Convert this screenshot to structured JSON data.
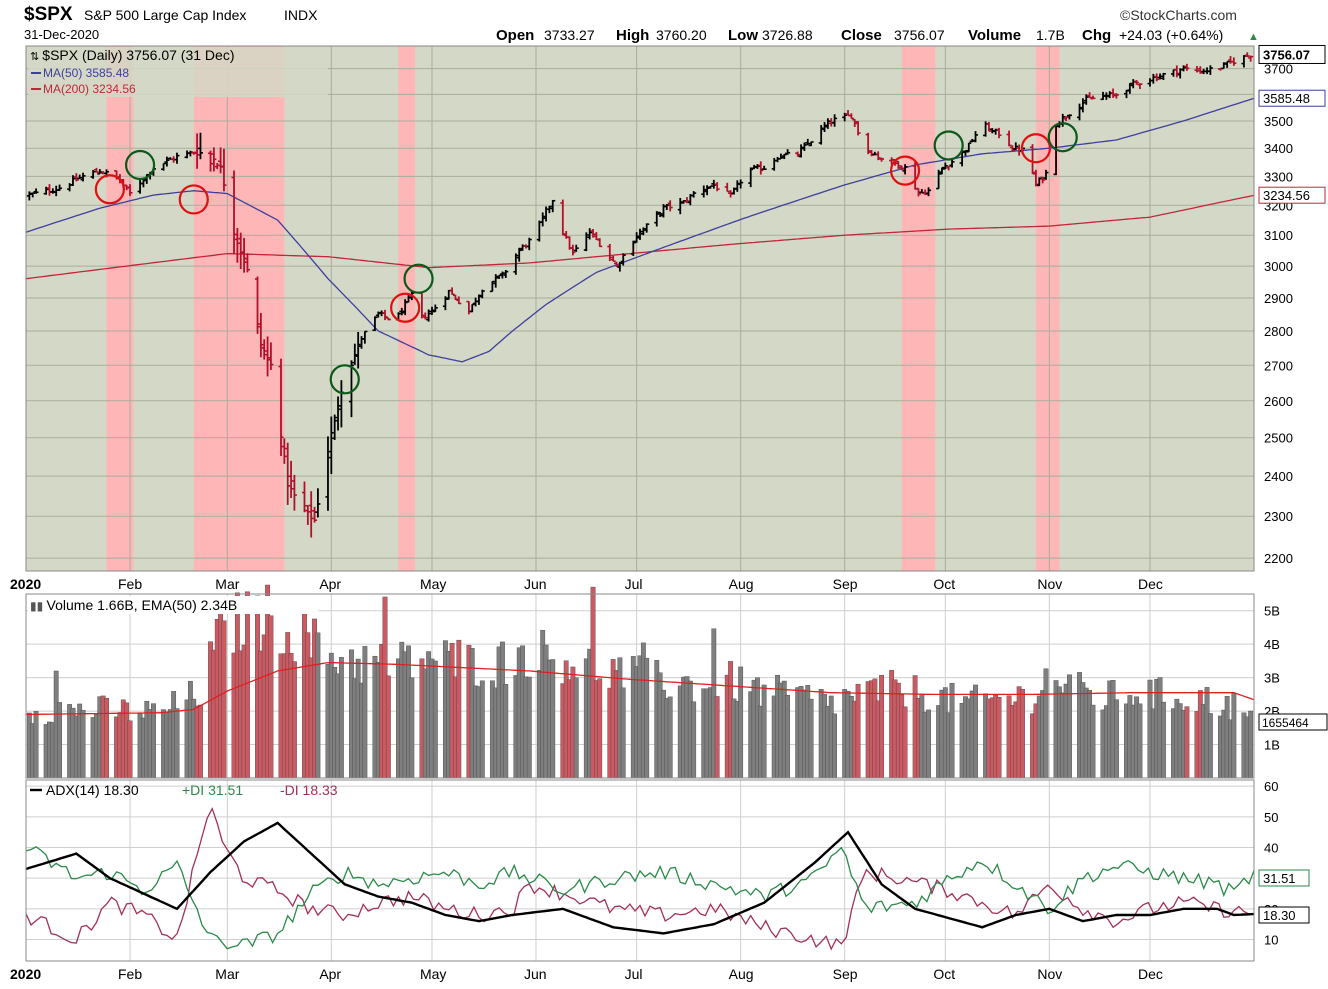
{
  "header": {
    "symbol": "$SPX",
    "name": "S&P 500 Large Cap Index",
    "exchange": "INDX",
    "date": "31-Dec-2020",
    "brand": "©StockCharts.com",
    "open_label": "Open",
    "open": "3733.27",
    "high_label": "High",
    "high": "3760.20",
    "low_label": "Low",
    "low": "3726.88",
    "close_label": "Close",
    "close": "3756.07",
    "volume_label": "Volume",
    "volume": "1.7B",
    "chg_label": "Chg",
    "chg": "+24.03 (+0.64%)",
    "chg_arrow": "▲"
  },
  "price_panel": {
    "legend_main": "$SPX (Daily) 3756.07 (31 Dec)",
    "legend_ma50": "MA(50) 3585.48",
    "legend_ma200": "MA(200) 3234.56",
    "tag_close": "3756.07",
    "tag_ma50": "3585.48",
    "tag_ma200": "3234.56"
  },
  "volume_panel": {
    "legend": "Volume 1.66B, EMA(50) 2.34B",
    "tag": "1655464"
  },
  "adx_panel": {
    "legend_adx": "ADX(14) 18.30",
    "legend_pdi": "+DI 31.51",
    "legend_mdi": "-DI 18.33",
    "tag_pdi": "31.51",
    "tag_adx": "18.30"
  },
  "colors": {
    "background": "#d4d8c6",
    "red_zone": "#ffb6b6",
    "up": "#000000",
    "down": "#b0102a",
    "ma50": "#3f3f9e",
    "ma200": "#c0283a",
    "vol_up": "#7f7f7f",
    "vol_down": "#cc5a63",
    "pdi": "#2b8a4a",
    "mdi": "#a3305a",
    "adx": "#000000",
    "circle_red": "#e01010",
    "circle_green": "#0a5a1a"
  },
  "chart_data": [
    {
      "type": "line",
      "x_axis": {
        "year_label": "2020",
        "months": [
          "Feb",
          "Mar",
          "Apr",
          "May",
          "Jun",
          "Jul",
          "Aug",
          "Sep",
          "Oct",
          "Nov",
          "Dec"
        ],
        "month_start_day": [
          31,
          60,
          91,
          121,
          152,
          182,
          213,
          244,
          274,
          305,
          335
        ],
        "range_days": [
          0,
          366
        ]
      },
      "y_axis": {
        "scale": "log",
        "ticks": [
          2200,
          2300,
          2400,
          2500,
          2600,
          2700,
          2800,
          2900,
          3000,
          3100,
          3200,
          3300,
          3400,
          3500,
          3600,
          3700
        ],
        "range": [
          2170,
          3790
        ]
      },
      "price_anchors": {
        "day": [
          1,
          10,
          17,
          22,
          27,
          31,
          38,
          45,
          50,
          55,
          58,
          62,
          66,
          70,
          73,
          78,
          82,
          86,
          91,
          94,
          100,
          105,
          110,
          115,
          118,
          121,
          126,
          132,
          136,
          140,
          142,
          147,
          151,
          156,
          158,
          160,
          163,
          168,
          172,
          176,
          182,
          186,
          190,
          196,
          200,
          205,
          210,
          215,
          220,
          224,
          230,
          235,
          238,
          240,
          243,
          246,
          250,
          254,
          258,
          262,
          266,
          269,
          273,
          277,
          281,
          285,
          288,
          291,
          294,
          298,
          301,
          304,
          307,
          309,
          312,
          316,
          320,
          325,
          330,
          335,
          340,
          345,
          350,
          355,
          360,
          365
        ],
        "close": [
          3235,
          3260,
          3300,
          3320,
          3295,
          3240,
          3330,
          3370,
          3385,
          3380,
          3330,
          3110,
          2985,
          2760,
          2700,
          2380,
          2320,
          2290,
          2510,
          2630,
          2780,
          2850,
          2830,
          2910,
          2840,
          2860,
          2920,
          2860,
          2930,
          2960,
          2970,
          3050,
          3090,
          3200,
          3240,
          3110,
          3040,
          3110,
          3060,
          3000,
          3100,
          3140,
          3190,
          3210,
          3250,
          3270,
          3230,
          3320,
          3330,
          3370,
          3380,
          3440,
          3480,
          3500,
          3510,
          3520,
          3400,
          3370,
          3350,
          3330,
          3240,
          3250,
          3330,
          3360,
          3410,
          3490,
          3460,
          3450,
          3400,
          3390,
          3270,
          3310,
          3490,
          3510,
          3540,
          3580,
          3590,
          3600,
          3640,
          3660,
          3680,
          3700,
          3690,
          3700,
          3730,
          3756
        ]
      },
      "ma50_anchors": {
        "day": [
          0,
          22,
          38,
          50,
          60,
          75,
          90,
          105,
          120,
          130,
          138,
          145,
          155,
          170,
          190,
          215,
          244,
          265,
          285,
          305,
          325,
          345,
          366
        ],
        "value": [
          3110,
          3190,
          3235,
          3250,
          3240,
          3150,
          2960,
          2800,
          2730,
          2710,
          2740,
          2800,
          2880,
          2980,
          3060,
          3160,
          3270,
          3340,
          3380,
          3400,
          3430,
          3500,
          3585
        ]
      },
      "ma200_anchors": {
        "day": [
          0,
          30,
          60,
          90,
          120,
          150,
          180,
          210,
          244,
          275,
          305,
          335,
          366
        ],
        "value": [
          2960,
          3000,
          3040,
          3030,
          2995,
          3010,
          3040,
          3070,
          3100,
          3120,
          3130,
          3160,
          3234
        ]
      },
      "red_zones": [
        [
          24,
          32
        ],
        [
          50,
          77
        ],
        [
          111,
          116
        ],
        [
          261,
          271
        ],
        [
          301,
          308
        ]
      ],
      "circles": [
        {
          "day": 25,
          "value": 3255,
          "color": "red"
        },
        {
          "day": 34,
          "value": 3340,
          "color": "green"
        },
        {
          "day": 50,
          "value": 3220,
          "color": "red"
        },
        {
          "day": 95,
          "value": 2660,
          "color": "green"
        },
        {
          "day": 113,
          "value": 2870,
          "color": "red"
        },
        {
          "day": 117,
          "value": 2960,
          "color": "green"
        },
        {
          "day": 262,
          "value": 3320,
          "color": "red"
        },
        {
          "day": 275,
          "value": 3410,
          "color": "green"
        },
        {
          "day": 301,
          "value": 3400,
          "color": "red"
        },
        {
          "day": 309,
          "value": 3440,
          "color": "green"
        }
      ]
    },
    {
      "type": "bar",
      "y_axis": {
        "ticks": [
          1,
          2,
          3,
          4,
          5
        ],
        "tick_labels": [
          "1B",
          "2B",
          "3B",
          "4B",
          "5B"
        ],
        "range": [
          0,
          5.5
        ]
      },
      "volume_anchors": {
        "day": [
          0,
          20,
          40,
          52,
          58,
          65,
          72,
          80,
          90,
          100,
          110,
          120,
          130,
          140,
          150,
          160,
          170,
          180,
          190,
          200,
          210,
          220,
          230,
          240,
          250,
          260,
          270,
          280,
          290,
          300,
          305,
          310,
          320,
          330,
          340,
          350,
          360,
          365
        ],
        "value": [
          2.0,
          2.0,
          1.9,
          2.5,
          4.2,
          4.6,
          4.7,
          4.3,
          3.6,
          3.4,
          3.3,
          3.5,
          3.4,
          3.3,
          3.7,
          3.5,
          3.2,
          3.0,
          2.8,
          2.7,
          2.8,
          2.5,
          2.4,
          2.2,
          2.5,
          2.6,
          2.4,
          2.2,
          2.3,
          2.4,
          3.0,
          2.7,
          2.3,
          2.5,
          2.4,
          2.3,
          2.1,
          1.66
        ]
      },
      "ema50_anchors": {
        "day": [
          0,
          40,
          50,
          60,
          75,
          90,
          110,
          130,
          150,
          180,
          210,
          240,
          270,
          300,
          330,
          360,
          366
        ],
        "value": [
          1.9,
          1.95,
          2.05,
          2.6,
          3.2,
          3.45,
          3.4,
          3.3,
          3.2,
          2.95,
          2.75,
          2.55,
          2.5,
          2.5,
          2.55,
          2.55,
          2.34
        ]
      }
    },
    {
      "type": "line",
      "y_axis": {
        "ticks": [
          10,
          20,
          30,
          40,
          50,
          60
        ],
        "range": [
          3,
          62
        ]
      },
      "series": [
        {
          "name": "ADX(14)",
          "day": [
            0,
            15,
            25,
            35,
            45,
            55,
            65,
            75,
            85,
            95,
            105,
            115,
            125,
            135,
            145,
            160,
            175,
            190,
            205,
            220,
            235,
            245,
            255,
            265,
            275,
            285,
            295,
            305,
            315,
            325,
            335,
            345,
            355,
            360,
            366
          ],
          "value": [
            33,
            38,
            30,
            25,
            20,
            32,
            42,
            48,
            38,
            28,
            24,
            22,
            18,
            16,
            18,
            20,
            14,
            12,
            15,
            22,
            35,
            45,
            28,
            20,
            17,
            14,
            18,
            20,
            16,
            18,
            18,
            20,
            20,
            18,
            18.3
          ]
        },
        {
          "name": "+DI",
          "day": [
            0,
            15,
            25,
            35,
            45,
            55,
            65,
            75,
            85,
            95,
            105,
            115,
            125,
            135,
            145,
            150,
            160,
            175,
            190,
            205,
            220,
            235,
            243,
            250,
            265,
            275,
            285,
            295,
            305,
            315,
            325,
            335,
            345,
            355,
            360,
            366
          ],
          "value": [
            40,
            30,
            32,
            26,
            34,
            10,
            8,
            12,
            25,
            32,
            28,
            30,
            32,
            28,
            32,
            30,
            26,
            30,
            32,
            28,
            24,
            30,
            40,
            20,
            22,
            30,
            36,
            28,
            20,
            30,
            34,
            32,
            30,
            28,
            25,
            31.5
          ]
        },
        {
          "name": "-DI",
          "day": [
            0,
            15,
            25,
            35,
            45,
            55,
            58,
            65,
            75,
            85,
            95,
            105,
            115,
            125,
            135,
            145,
            150,
            160,
            175,
            190,
            205,
            220,
            235,
            243,
            250,
            260,
            275,
            285,
            295,
            305,
            315,
            325,
            335,
            345,
            355,
            366
          ],
          "value": [
            18,
            10,
            22,
            18,
            10,
            55,
            42,
            30,
            26,
            20,
            18,
            22,
            24,
            20,
            18,
            20,
            28,
            25,
            20,
            18,
            20,
            14,
            10,
            8,
            32,
            30,
            26,
            22,
            18,
            28,
            20,
            16,
            20,
            22,
            20,
            18.3
          ]
        }
      ]
    }
  ]
}
